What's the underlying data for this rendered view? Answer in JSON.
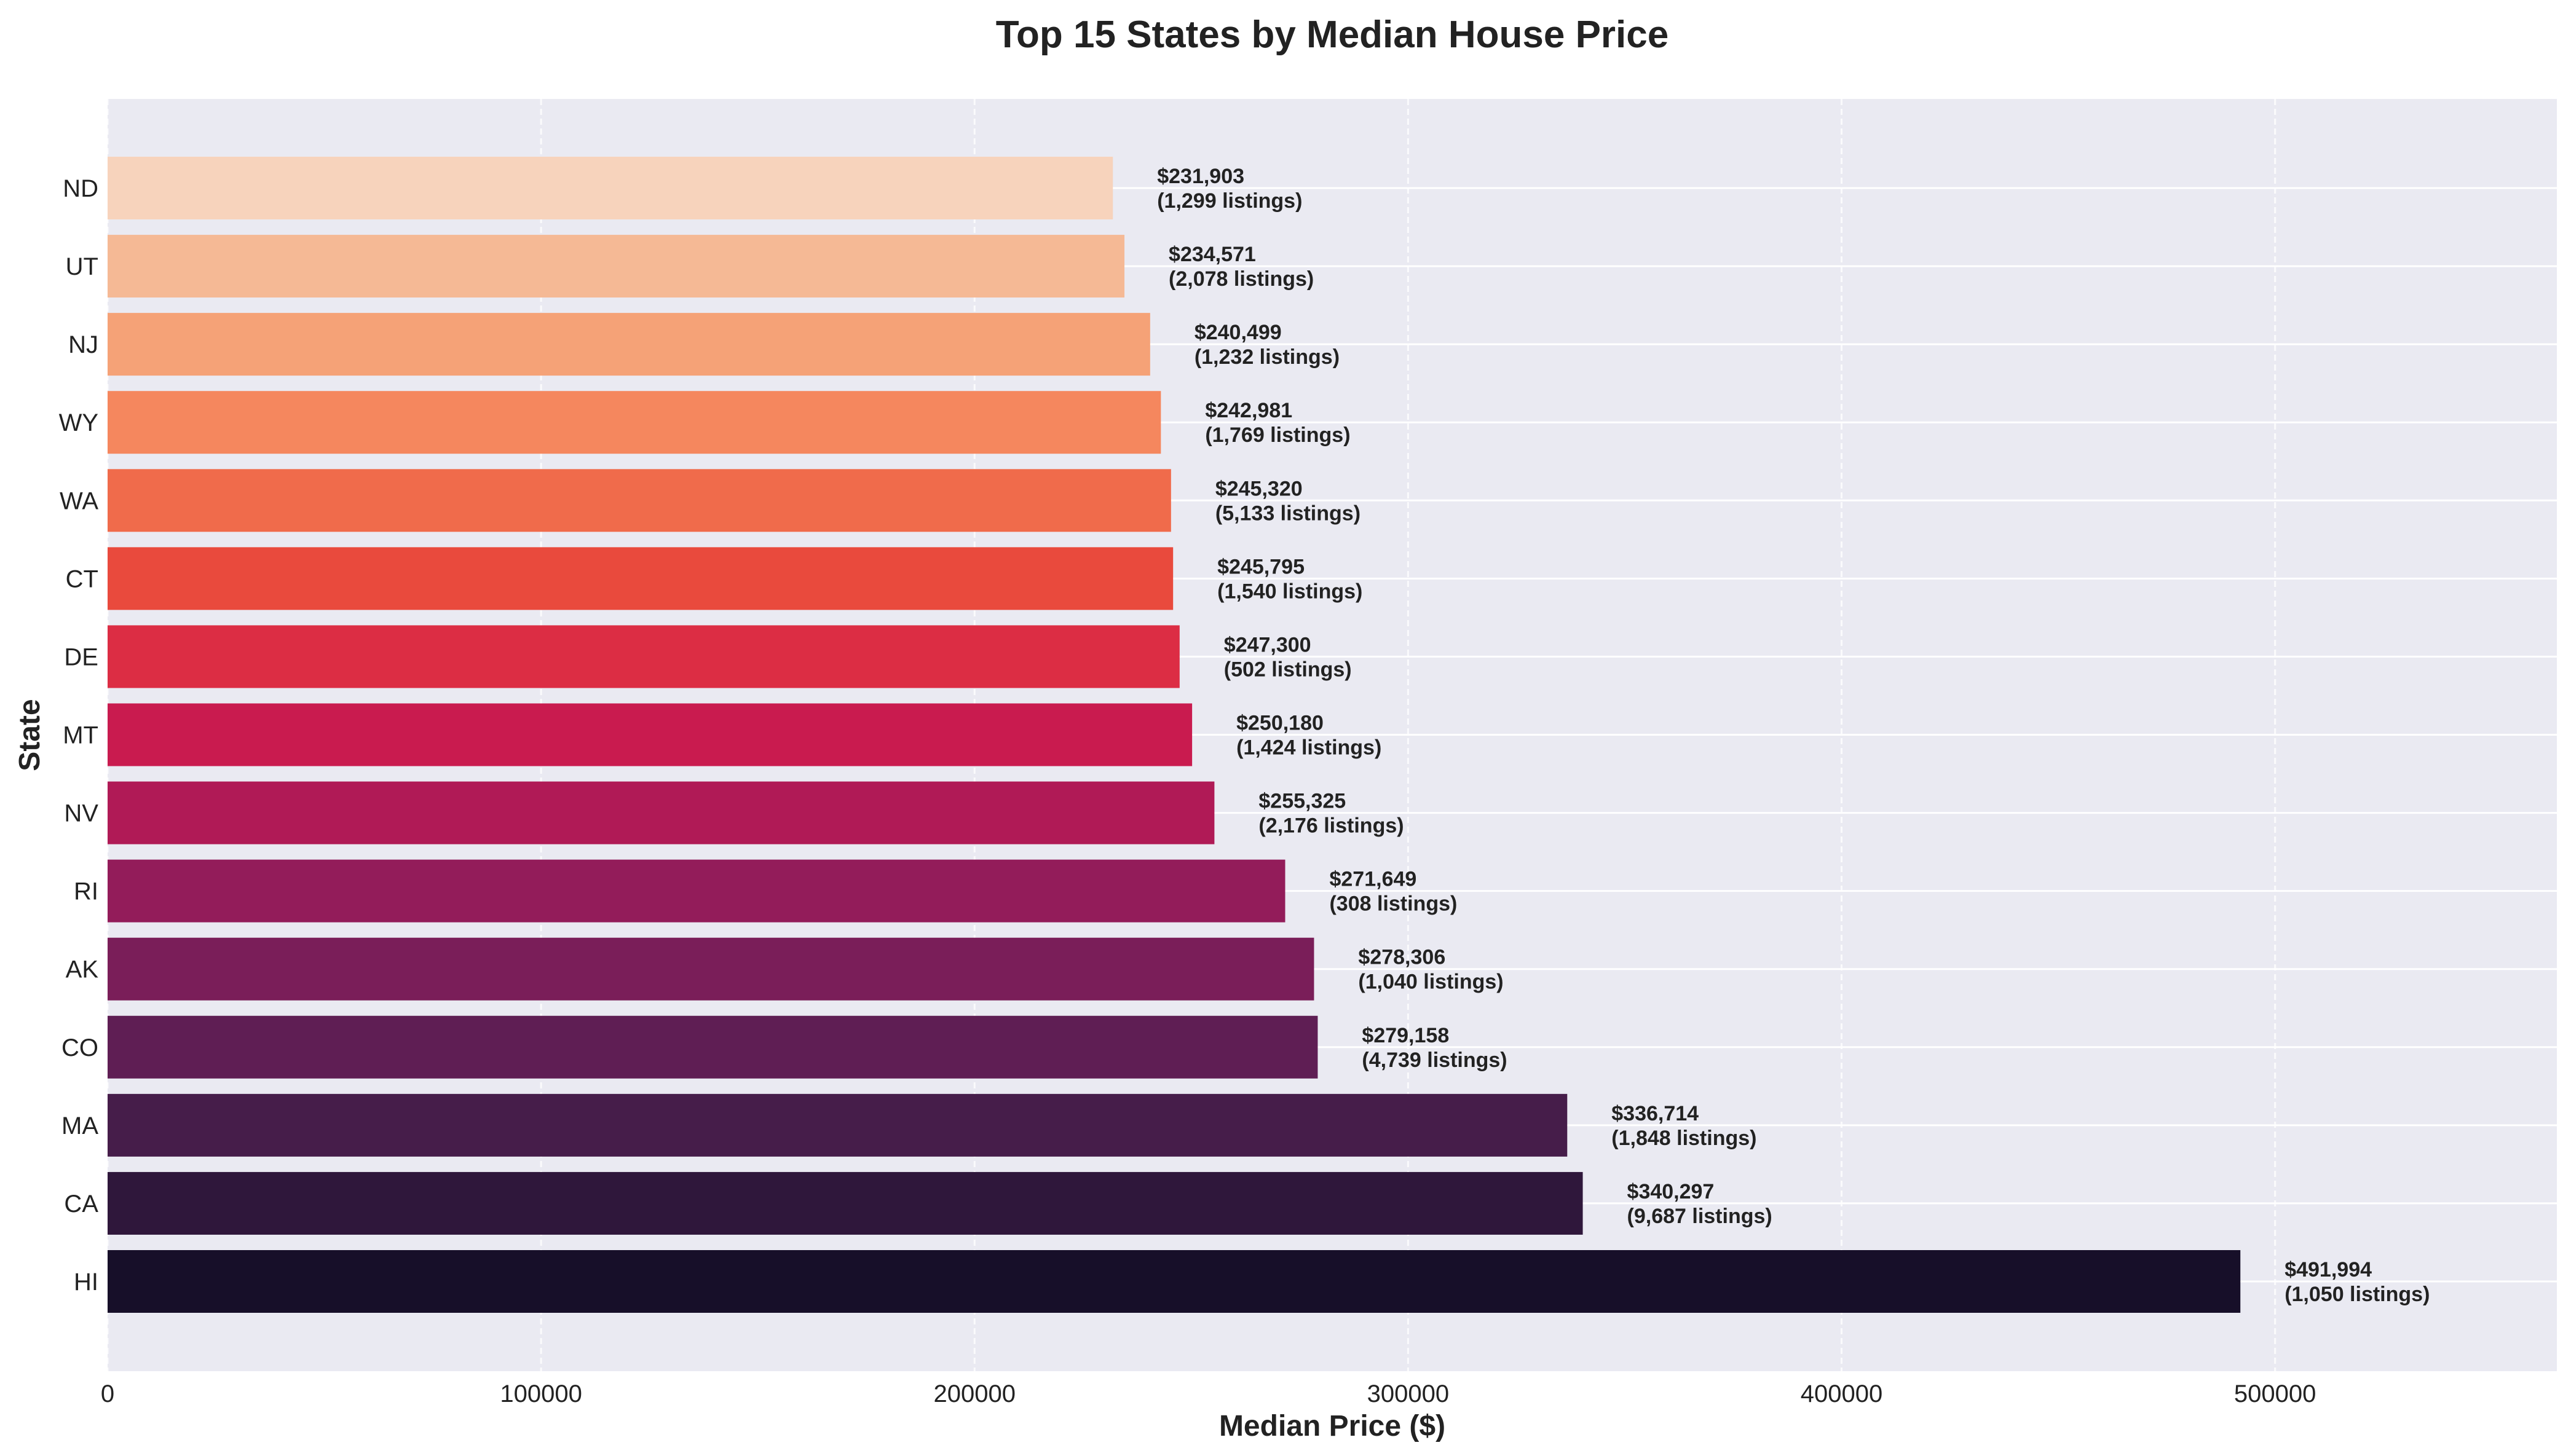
{
  "chart_data": {
    "type": "bar",
    "orientation": "horizontal",
    "title": "Top 15 States by Median House Price",
    "xlabel": "Median Price ($)",
    "ylabel": "State",
    "xlim": [
      0,
      565000
    ],
    "xticks": [
      0,
      100000,
      200000,
      300000,
      400000,
      500000
    ],
    "xtick_labels": [
      "0",
      "100000",
      "200000",
      "300000",
      "400000",
      "500000"
    ],
    "grid": true,
    "categories": [
      "ND",
      "UT",
      "NJ",
      "WY",
      "WA",
      "CT",
      "DE",
      "MT",
      "NV",
      "RI",
      "AK",
      "CO",
      "MA",
      "CA",
      "HI"
    ],
    "values": [
      231903,
      234571,
      240499,
      242981,
      245320,
      245795,
      247300,
      250180,
      255325,
      271649,
      278306,
      279158,
      336714,
      340297,
      491994
    ],
    "price_labels": [
      "$231,903",
      "$234,571",
      "$240,499",
      "$242,981",
      "$245,320",
      "$245,795",
      "$247,300",
      "$250,180",
      "$255,325",
      "$271,649",
      "$278,306",
      "$279,158",
      "$336,714",
      "$340,297",
      "$491,994"
    ],
    "listing_labels": [
      "(1,299 listings)",
      "(2,078 listings)",
      "(1,232 listings)",
      "(1,769 listings)",
      "(5,133 listings)",
      "(1,540 listings)",
      "(502 listings)",
      "(1,424 listings)",
      "(2,176 listings)",
      "(308 listings)",
      "(1,040 listings)",
      "(4,739 listings)",
      "(1,848 listings)",
      "(9,687 listings)",
      "(1,050 listings)"
    ],
    "colors": [
      "#f7d3bc",
      "#f5b995",
      "#f5a277",
      "#f5875e",
      "#f06b4b",
      "#e94a3d",
      "#dc2d44",
      "#c91b4f",
      "#b01a56",
      "#931c5a",
      "#7a1e59",
      "#5f1e54",
      "#461d4a",
      "#2f173b",
      "#170f29"
    ],
    "background_color": "#eaeaf2",
    "grid_color": "#ffffff"
  }
}
